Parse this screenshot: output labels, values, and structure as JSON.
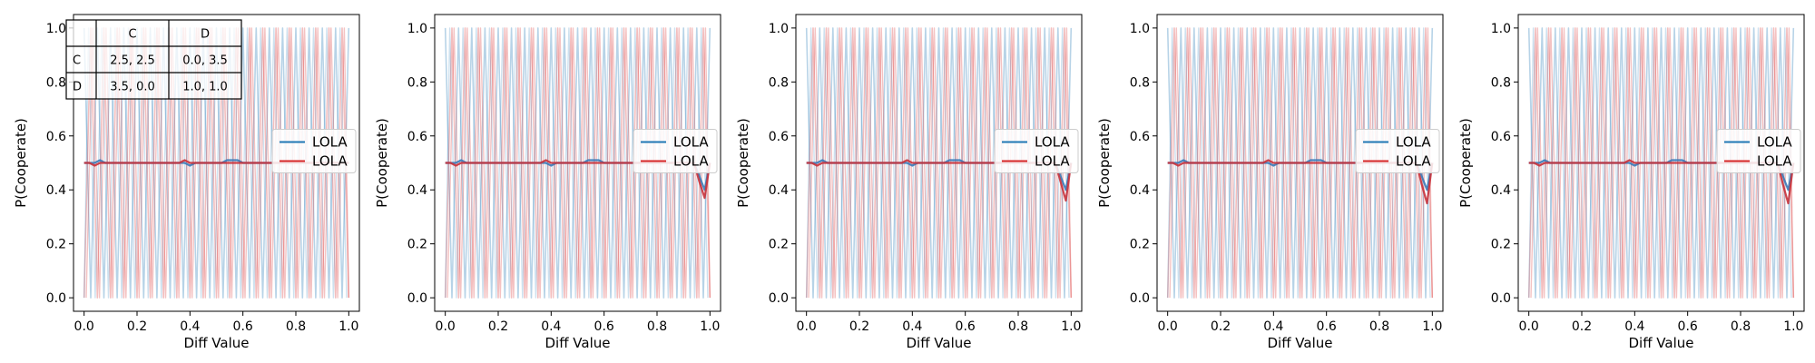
{
  "payoff_table": {
    "col_headers": [
      "",
      "C",
      "D"
    ],
    "rows": [
      [
        "C",
        "2.5, 2.5",
        "0.0, 3.5"
      ],
      [
        "D",
        "3.5, 0.0",
        "1.0, 1.0"
      ]
    ]
  },
  "colors": {
    "series_blue": "#1f77b4",
    "series_red": "#d62728",
    "mean_blue": "#3a7ab8",
    "mean_red": "#c8313a"
  },
  "chart_data": [
    {
      "type": "line",
      "xlabel": "Diff Value",
      "ylabel": "P(Cooperate)",
      "xlim": [
        -0.04,
        1.04
      ],
      "ylim": [
        -0.05,
        1.05
      ],
      "xticks": [
        "0.0",
        "0.2",
        "0.4",
        "0.6",
        "0.8",
        "1.0"
      ],
      "yticks": [
        "0.0",
        "0.2",
        "0.4",
        "0.6",
        "0.8",
        "1.0"
      ],
      "grid": false,
      "legend": {
        "placement": "center-right",
        "entries": [
          "LOLA",
          "LOLA"
        ]
      },
      "x": [
        0.0,
        0.02,
        0.04,
        0.06,
        0.08,
        0.1,
        0.12,
        0.14,
        0.16,
        0.18,
        0.2,
        0.22,
        0.24,
        0.26,
        0.28,
        0.3,
        0.32,
        0.34,
        0.36,
        0.38,
        0.4,
        0.42,
        0.44,
        0.46,
        0.48,
        0.5,
        0.52,
        0.54,
        0.56,
        0.58,
        0.6,
        0.62,
        0.64,
        0.66,
        0.68,
        0.7,
        0.72,
        0.74,
        0.76,
        0.78,
        0.8,
        0.82,
        0.84,
        0.86,
        0.88,
        0.9,
        0.92,
        0.94,
        0.96,
        0.98,
        1.0
      ],
      "series": [
        {
          "name": "LOLA",
          "color": "#1f77b4",
          "values": [
            0.5,
            0.5,
            0.5,
            0.51,
            0.5,
            0.5,
            0.5,
            0.5,
            0.5,
            0.5,
            0.5,
            0.5,
            0.5,
            0.5,
            0.5,
            0.5,
            0.5,
            0.5,
            0.5,
            0.5,
            0.49,
            0.5,
            0.5,
            0.5,
            0.5,
            0.5,
            0.5,
            0.51,
            0.51,
            0.51,
            0.5,
            0.5,
            0.5,
            0.5,
            0.5,
            0.5,
            0.5,
            0.5,
            0.5,
            0.5,
            0.5,
            0.5,
            0.5,
            0.5,
            0.5,
            0.5,
            0.5,
            0.5,
            0.5,
            0.5,
            0.5
          ]
        },
        {
          "name": "LOLA",
          "color": "#d62728",
          "values": [
            0.5,
            0.5,
            0.49,
            0.5,
            0.5,
            0.5,
            0.5,
            0.5,
            0.5,
            0.5,
            0.5,
            0.5,
            0.5,
            0.5,
            0.5,
            0.5,
            0.5,
            0.5,
            0.5,
            0.51,
            0.5,
            0.5,
            0.5,
            0.5,
            0.5,
            0.5,
            0.5,
            0.5,
            0.5,
            0.5,
            0.5,
            0.5,
            0.5,
            0.5,
            0.5,
            0.5,
            0.5,
            0.5,
            0.5,
            0.5,
            0.5,
            0.5,
            0.5,
            0.5,
            0.5,
            0.5,
            0.5,
            0.5,
            0.5,
            0.5,
            0.5
          ]
        }
      ]
    },
    {
      "type": "line",
      "xlabel": "Diff Value",
      "ylabel": "P(Cooperate)",
      "xlim": [
        -0.04,
        1.04
      ],
      "ylim": [
        -0.05,
        1.05
      ],
      "xticks": [
        "0.0",
        "0.2",
        "0.4",
        "0.6",
        "0.8",
        "1.0"
      ],
      "yticks": [
        "0.0",
        "0.2",
        "0.4",
        "0.6",
        "0.8",
        "1.0"
      ],
      "grid": false,
      "legend": {
        "placement": "center-right",
        "entries": [
          "LOLA",
          "LOLA"
        ]
      },
      "x": [
        0.0,
        0.02,
        0.04,
        0.06,
        0.08,
        0.1,
        0.12,
        0.14,
        0.16,
        0.18,
        0.2,
        0.22,
        0.24,
        0.26,
        0.28,
        0.3,
        0.32,
        0.34,
        0.36,
        0.38,
        0.4,
        0.42,
        0.44,
        0.46,
        0.48,
        0.5,
        0.52,
        0.54,
        0.56,
        0.58,
        0.6,
        0.62,
        0.64,
        0.66,
        0.68,
        0.7,
        0.72,
        0.74,
        0.76,
        0.78,
        0.8,
        0.82,
        0.84,
        0.86,
        0.88,
        0.9,
        0.92,
        0.94,
        0.96,
        0.98,
        1.0
      ],
      "series": [
        {
          "name": "LOLA",
          "color": "#1f77b4",
          "values": [
            0.5,
            0.5,
            0.5,
            0.51,
            0.5,
            0.5,
            0.5,
            0.5,
            0.5,
            0.5,
            0.5,
            0.5,
            0.5,
            0.5,
            0.5,
            0.5,
            0.5,
            0.5,
            0.5,
            0.5,
            0.49,
            0.5,
            0.5,
            0.5,
            0.5,
            0.5,
            0.5,
            0.51,
            0.51,
            0.51,
            0.5,
            0.5,
            0.5,
            0.5,
            0.5,
            0.5,
            0.5,
            0.5,
            0.5,
            0.5,
            0.5,
            0.5,
            0.5,
            0.5,
            0.5,
            0.5,
            0.5,
            0.5,
            0.45,
            0.4,
            0.5
          ]
        },
        {
          "name": "LOLA",
          "color": "#d62728",
          "values": [
            0.5,
            0.5,
            0.49,
            0.5,
            0.5,
            0.5,
            0.5,
            0.5,
            0.5,
            0.5,
            0.5,
            0.5,
            0.5,
            0.5,
            0.5,
            0.5,
            0.5,
            0.5,
            0.5,
            0.51,
            0.5,
            0.5,
            0.5,
            0.5,
            0.5,
            0.5,
            0.5,
            0.5,
            0.5,
            0.5,
            0.5,
            0.5,
            0.5,
            0.5,
            0.5,
            0.5,
            0.5,
            0.5,
            0.5,
            0.5,
            0.5,
            0.5,
            0.5,
            0.5,
            0.5,
            0.5,
            0.5,
            0.5,
            0.43,
            0.37,
            0.5
          ]
        }
      ]
    },
    {
      "type": "line",
      "xlabel": "Diff Value",
      "ylabel": "P(Cooperate)",
      "xlim": [
        -0.04,
        1.04
      ],
      "ylim": [
        -0.05,
        1.05
      ],
      "xticks": [
        "0.0",
        "0.2",
        "0.4",
        "0.6",
        "0.8",
        "1.0"
      ],
      "yticks": [
        "0.0",
        "0.2",
        "0.4",
        "0.6",
        "0.8",
        "1.0"
      ],
      "grid": false,
      "legend": {
        "placement": "center-right",
        "entries": [
          "LOLA",
          "LOLA"
        ]
      },
      "x": [
        0.0,
        0.02,
        0.04,
        0.06,
        0.08,
        0.1,
        0.12,
        0.14,
        0.16,
        0.18,
        0.2,
        0.22,
        0.24,
        0.26,
        0.28,
        0.3,
        0.32,
        0.34,
        0.36,
        0.38,
        0.4,
        0.42,
        0.44,
        0.46,
        0.48,
        0.5,
        0.52,
        0.54,
        0.56,
        0.58,
        0.6,
        0.62,
        0.64,
        0.66,
        0.68,
        0.7,
        0.72,
        0.74,
        0.76,
        0.78,
        0.8,
        0.82,
        0.84,
        0.86,
        0.88,
        0.9,
        0.92,
        0.94,
        0.96,
        0.98,
        1.0
      ],
      "series": [
        {
          "name": "LOLA",
          "color": "#1f77b4",
          "values": [
            0.5,
            0.5,
            0.5,
            0.51,
            0.5,
            0.5,
            0.5,
            0.5,
            0.5,
            0.5,
            0.5,
            0.5,
            0.5,
            0.5,
            0.5,
            0.5,
            0.5,
            0.5,
            0.5,
            0.5,
            0.49,
            0.5,
            0.5,
            0.5,
            0.5,
            0.5,
            0.5,
            0.51,
            0.51,
            0.51,
            0.5,
            0.5,
            0.5,
            0.5,
            0.5,
            0.5,
            0.5,
            0.5,
            0.5,
            0.5,
            0.5,
            0.5,
            0.5,
            0.5,
            0.5,
            0.5,
            0.5,
            0.5,
            0.45,
            0.4,
            0.5
          ]
        },
        {
          "name": "LOLA",
          "color": "#d62728",
          "values": [
            0.5,
            0.5,
            0.49,
            0.5,
            0.5,
            0.5,
            0.5,
            0.5,
            0.5,
            0.5,
            0.5,
            0.5,
            0.5,
            0.5,
            0.5,
            0.5,
            0.5,
            0.5,
            0.5,
            0.51,
            0.5,
            0.5,
            0.5,
            0.5,
            0.5,
            0.5,
            0.5,
            0.5,
            0.5,
            0.5,
            0.5,
            0.5,
            0.5,
            0.5,
            0.5,
            0.5,
            0.5,
            0.5,
            0.5,
            0.5,
            0.5,
            0.5,
            0.5,
            0.5,
            0.5,
            0.5,
            0.5,
            0.5,
            0.43,
            0.36,
            0.5
          ]
        }
      ]
    },
    {
      "type": "line",
      "xlabel": "Diff Value",
      "ylabel": "P(Cooperate)",
      "xlim": [
        -0.04,
        1.04
      ],
      "ylim": [
        -0.05,
        1.05
      ],
      "xticks": [
        "0.0",
        "0.2",
        "0.4",
        "0.6",
        "0.8",
        "1.0"
      ],
      "yticks": [
        "0.0",
        "0.2",
        "0.4",
        "0.6",
        "0.8",
        "1.0"
      ],
      "grid": false,
      "legend": {
        "placement": "center-right",
        "entries": [
          "LOLA",
          "LOLA"
        ]
      },
      "x": [
        0.0,
        0.02,
        0.04,
        0.06,
        0.08,
        0.1,
        0.12,
        0.14,
        0.16,
        0.18,
        0.2,
        0.22,
        0.24,
        0.26,
        0.28,
        0.3,
        0.32,
        0.34,
        0.36,
        0.38,
        0.4,
        0.42,
        0.44,
        0.46,
        0.48,
        0.5,
        0.52,
        0.54,
        0.56,
        0.58,
        0.6,
        0.62,
        0.64,
        0.66,
        0.68,
        0.7,
        0.72,
        0.74,
        0.76,
        0.78,
        0.8,
        0.82,
        0.84,
        0.86,
        0.88,
        0.9,
        0.92,
        0.94,
        0.96,
        0.98,
        1.0
      ],
      "series": [
        {
          "name": "LOLA",
          "color": "#1f77b4",
          "values": [
            0.5,
            0.5,
            0.5,
            0.51,
            0.5,
            0.5,
            0.5,
            0.5,
            0.5,
            0.5,
            0.5,
            0.5,
            0.5,
            0.5,
            0.5,
            0.5,
            0.5,
            0.5,
            0.5,
            0.5,
            0.49,
            0.5,
            0.5,
            0.5,
            0.5,
            0.5,
            0.5,
            0.51,
            0.51,
            0.51,
            0.5,
            0.5,
            0.5,
            0.5,
            0.5,
            0.5,
            0.5,
            0.5,
            0.5,
            0.5,
            0.5,
            0.5,
            0.5,
            0.5,
            0.5,
            0.5,
            0.5,
            0.5,
            0.45,
            0.4,
            0.5
          ]
        },
        {
          "name": "LOLA",
          "color": "#d62728",
          "values": [
            0.5,
            0.5,
            0.49,
            0.5,
            0.5,
            0.5,
            0.5,
            0.5,
            0.5,
            0.5,
            0.5,
            0.5,
            0.5,
            0.5,
            0.5,
            0.5,
            0.5,
            0.5,
            0.5,
            0.51,
            0.5,
            0.5,
            0.5,
            0.5,
            0.5,
            0.5,
            0.5,
            0.5,
            0.5,
            0.5,
            0.5,
            0.5,
            0.5,
            0.5,
            0.5,
            0.5,
            0.5,
            0.5,
            0.5,
            0.5,
            0.5,
            0.5,
            0.5,
            0.5,
            0.5,
            0.5,
            0.5,
            0.5,
            0.42,
            0.35,
            0.5
          ]
        }
      ]
    },
    {
      "type": "line",
      "xlabel": "Diff Value",
      "ylabel": "P(Cooperate)",
      "xlim": [
        -0.04,
        1.04
      ],
      "ylim": [
        -0.05,
        1.05
      ],
      "xticks": [
        "0.0",
        "0.2",
        "0.4",
        "0.6",
        "0.8",
        "1.0"
      ],
      "yticks": [
        "0.0",
        "0.2",
        "0.4",
        "0.6",
        "0.8",
        "1.0"
      ],
      "grid": false,
      "legend": {
        "placement": "center-right",
        "entries": [
          "LOLA",
          "LOLA"
        ]
      },
      "x": [
        0.0,
        0.02,
        0.04,
        0.06,
        0.08,
        0.1,
        0.12,
        0.14,
        0.16,
        0.18,
        0.2,
        0.22,
        0.24,
        0.26,
        0.28,
        0.3,
        0.32,
        0.34,
        0.36,
        0.38,
        0.4,
        0.42,
        0.44,
        0.46,
        0.48,
        0.5,
        0.52,
        0.54,
        0.56,
        0.58,
        0.6,
        0.62,
        0.64,
        0.66,
        0.68,
        0.7,
        0.72,
        0.74,
        0.76,
        0.78,
        0.8,
        0.82,
        0.84,
        0.86,
        0.88,
        0.9,
        0.92,
        0.94,
        0.96,
        0.98,
        1.0
      ],
      "series": [
        {
          "name": "LOLA",
          "color": "#1f77b4",
          "values": [
            0.5,
            0.5,
            0.5,
            0.51,
            0.5,
            0.5,
            0.5,
            0.5,
            0.5,
            0.5,
            0.5,
            0.5,
            0.5,
            0.5,
            0.5,
            0.5,
            0.5,
            0.5,
            0.5,
            0.5,
            0.49,
            0.5,
            0.5,
            0.5,
            0.5,
            0.5,
            0.5,
            0.51,
            0.51,
            0.51,
            0.5,
            0.5,
            0.5,
            0.5,
            0.5,
            0.5,
            0.5,
            0.5,
            0.5,
            0.5,
            0.5,
            0.5,
            0.5,
            0.5,
            0.5,
            0.5,
            0.5,
            0.5,
            0.45,
            0.4,
            0.5
          ]
        },
        {
          "name": "LOLA",
          "color": "#d62728",
          "values": [
            0.5,
            0.5,
            0.49,
            0.5,
            0.5,
            0.5,
            0.5,
            0.5,
            0.5,
            0.5,
            0.5,
            0.5,
            0.5,
            0.5,
            0.5,
            0.5,
            0.5,
            0.5,
            0.5,
            0.51,
            0.5,
            0.5,
            0.5,
            0.5,
            0.5,
            0.5,
            0.5,
            0.5,
            0.5,
            0.5,
            0.5,
            0.5,
            0.5,
            0.5,
            0.5,
            0.5,
            0.5,
            0.5,
            0.5,
            0.5,
            0.5,
            0.5,
            0.5,
            0.5,
            0.5,
            0.5,
            0.5,
            0.5,
            0.42,
            0.35,
            0.5
          ]
        }
      ]
    }
  ]
}
